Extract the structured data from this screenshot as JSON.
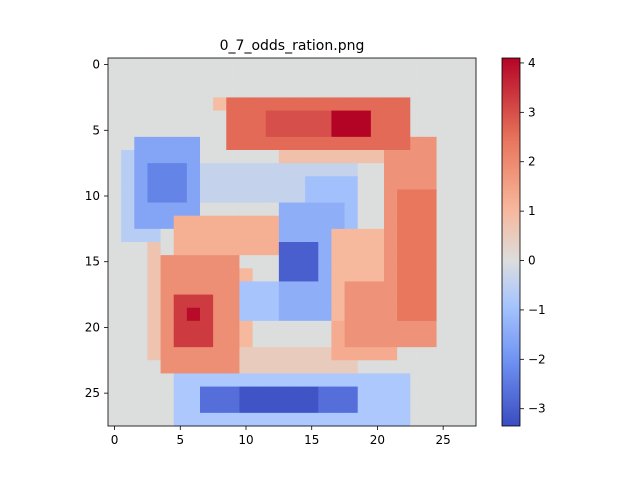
{
  "chart_data": {
    "type": "heatmap",
    "title": "0_7_odds_ration.png",
    "xlabel": "",
    "ylabel": "",
    "grid_size": [
      28,
      28
    ],
    "x_ticks": [
      0,
      5,
      10,
      15,
      20,
      25
    ],
    "y_ticks": [
      0,
      5,
      10,
      15,
      20,
      25
    ],
    "x_range": [
      -0.5,
      27.5
    ],
    "y_range": [
      -0.5,
      27.5
    ],
    "colormap": "coolwarm",
    "color_range": [
      -3.35,
      4.1
    ],
    "colorbar_ticks": [
      -3,
      -2,
      -1,
      0,
      1,
      2,
      3,
      4
    ],
    "colorbar_labels": [
      "−3",
      "−2",
      "−1",
      "0",
      "1",
      "2",
      "3",
      "4"
    ],
    "colors": {
      "cmap_stops": [
        "#3b4cc0",
        "#7093f3",
        "#aac7fd",
        "#dcdddd",
        "#f7b89c",
        "#e7745b",
        "#b40426"
      ],
      "axis": "#000000"
    },
    "shapes": [
      {
        "name": "top-bar",
        "r0": 3,
        "r1": 6,
        "c0": 9,
        "c1": 22,
        "v": 2.6
      },
      {
        "name": "top-bar-peak",
        "r0": 4,
        "r1": 5,
        "c0": 17,
        "c1": 19,
        "v": 4.1
      },
      {
        "name": "top-bar-mid",
        "r0": 4,
        "r1": 5,
        "c0": 12,
        "c1": 16,
        "v": 3.0
      },
      {
        "name": "top-bar-edge",
        "r0": 3,
        "r1": 3,
        "c0": 8,
        "c1": 19,
        "v": 0.9
      },
      {
        "name": "top-bar-under",
        "r0": 6,
        "r1": 7,
        "c0": 13,
        "c1": 22,
        "v": 0.8
      },
      {
        "name": "right-bar",
        "r0": 6,
        "r1": 21,
        "c0": 21,
        "c1": 24,
        "v": 1.8
      },
      {
        "name": "right-bar-inner",
        "r0": 10,
        "r1": 19,
        "c0": 22,
        "c1": 24,
        "v": 2.4
      },
      {
        "name": "right-bar-lower",
        "r0": 17,
        "r1": 21,
        "c0": 18,
        "c1": 22,
        "v": 1.8
      },
      {
        "name": "right-bar-bottom",
        "r0": 20,
        "r1": 22,
        "c0": 17,
        "c1": 21,
        "v": 1.3
      },
      {
        "name": "left-upper-neg",
        "r0": 6,
        "r1": 12,
        "c0": 2,
        "c1": 6,
        "v": -1.6
      },
      {
        "name": "left-upper-neg-core",
        "r0": 8,
        "r1": 10,
        "c0": 3,
        "c1": 5,
        "v": -2.3
      },
      {
        "name": "left-upper-neg-fade",
        "r0": 7,
        "r1": 13,
        "c0": 1,
        "c1": 3,
        "v": -0.6
      },
      {
        "name": "upper-band-neg",
        "r0": 8,
        "r1": 10,
        "c0": 6,
        "c1": 18,
        "v": -0.4
      },
      {
        "name": "left-arm",
        "r0": 12,
        "r1": 14,
        "c0": 5,
        "c1": 13,
        "v": 1.2
      },
      {
        "name": "left-block",
        "r0": 15,
        "r1": 23,
        "c0": 4,
        "c1": 9,
        "v": 1.9
      },
      {
        "name": "left-block-core",
        "r0": 18,
        "r1": 21,
        "c0": 5,
        "c1": 7,
        "v": 3.3
      },
      {
        "name": "left-block-peak",
        "r0": 19,
        "r1": 19,
        "c0": 6,
        "c1": 6,
        "v": 4.0
      },
      {
        "name": "left-block-edge",
        "r0": 14,
        "r1": 22,
        "c0": 3,
        "c1": 3,
        "v": 0.7
      },
      {
        "name": "left-block-inner",
        "r0": 16,
        "r1": 21,
        "c0": 9,
        "c1": 10,
        "v": 1.0
      },
      {
        "name": "center-neg",
        "r0": 11,
        "r1": 19,
        "c0": 13,
        "c1": 17,
        "v": -1.4
      },
      {
        "name": "center-neg-core",
        "r0": 14,
        "r1": 16,
        "c0": 13,
        "c1": 15,
        "v": -3.0
      },
      {
        "name": "center-neg-upper",
        "r0": 9,
        "r1": 13,
        "c0": 15,
        "c1": 18,
        "v": -1.0
      },
      {
        "name": "center-neg-lower",
        "r0": 17,
        "r1": 19,
        "c0": 10,
        "c1": 14,
        "v": -0.9
      },
      {
        "name": "center-pos",
        "r0": 13,
        "r1": 20,
        "c0": 17,
        "c1": 20,
        "v": 1.0
      },
      {
        "name": "bottom-mid",
        "r0": 22,
        "r1": 23,
        "c0": 9,
        "c1": 18,
        "v": 0.5
      },
      {
        "name": "bottom-bar",
        "r0": 25,
        "r1": 26,
        "c0": 7,
        "c1": 18,
        "v": -2.7
      },
      {
        "name": "bottom-bar-core",
        "r0": 25,
        "r1": 26,
        "c0": 10,
        "c1": 15,
        "v": -3.2
      },
      {
        "name": "bottom-bar-edge",
        "r0": 24,
        "r1": 27,
        "c0": 5,
        "c1": 22,
        "v": -0.8
      }
    ]
  }
}
